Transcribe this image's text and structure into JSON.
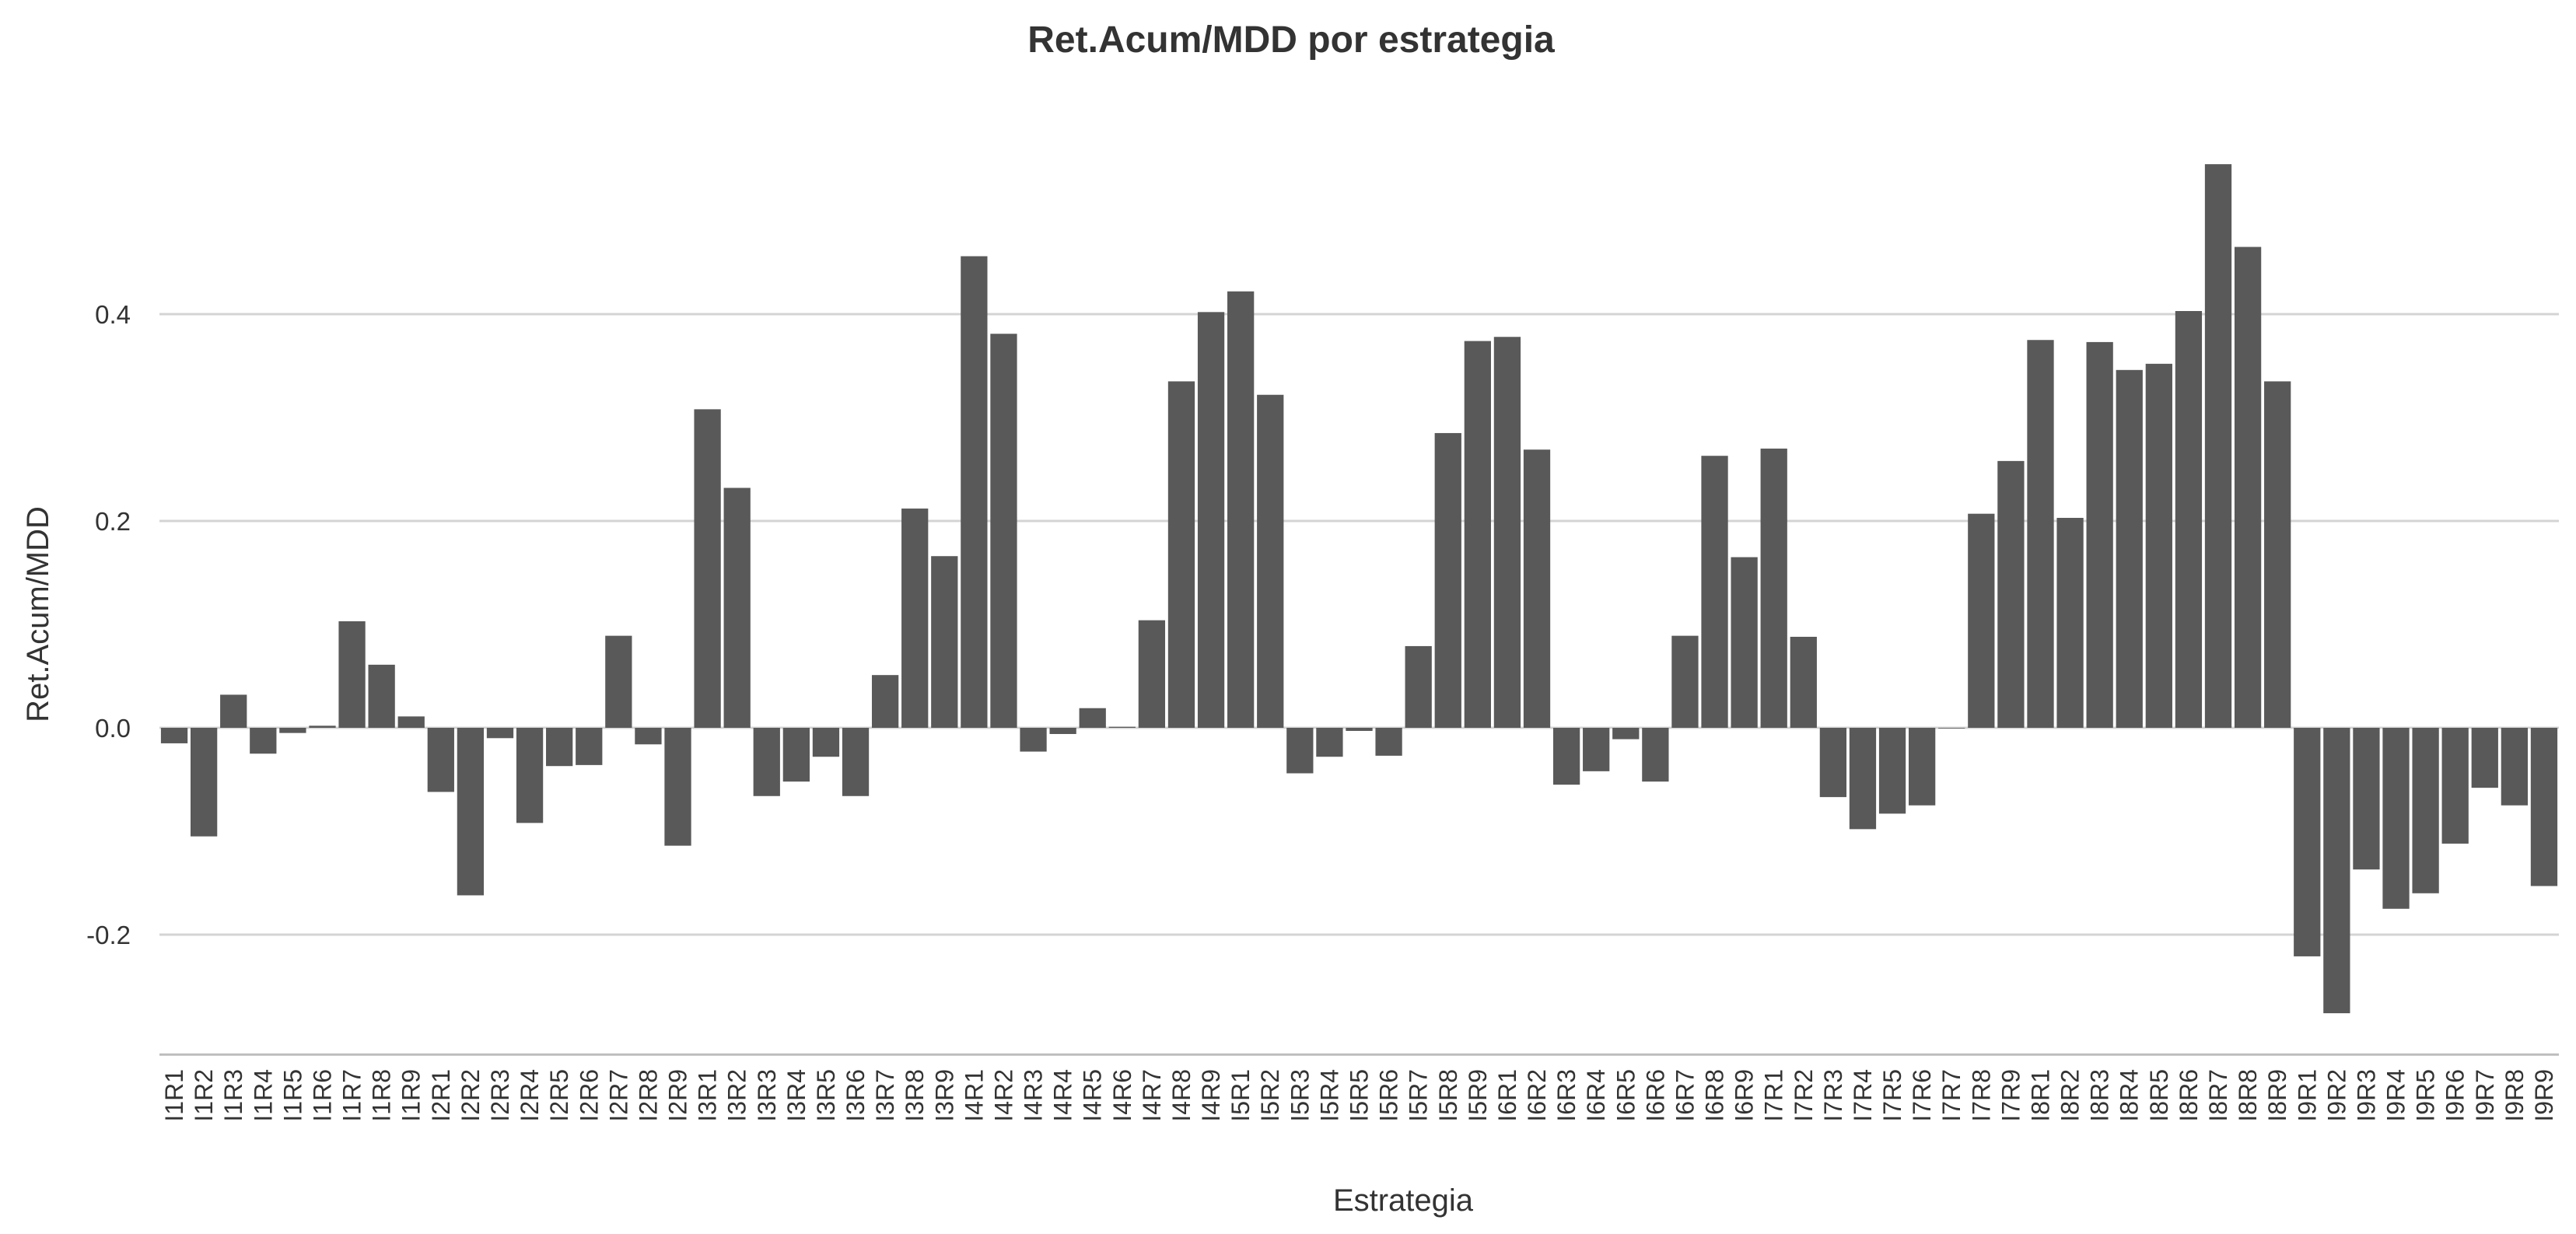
{
  "chart_data": {
    "type": "bar",
    "title": "Ret.Acum/MDD por estrategia",
    "xlabel": "Estrategia",
    "ylabel": "Ret.Acum/MDD",
    "ylim": [
      -0.31,
      0.57
    ],
    "yticks": [
      -0.2,
      0.0,
      0.2,
      0.4
    ],
    "ytick_labels": [
      "-0.2",
      "0.0",
      "0.2",
      "0.4"
    ],
    "grid": "horizontal-major",
    "legend": "none",
    "bar_color": "#595959",
    "categories": [
      "I1R1",
      "I1R2",
      "I1R3",
      "I1R4",
      "I1R5",
      "I1R6",
      "I1R7",
      "I1R8",
      "I1R9",
      "I2R1",
      "I2R2",
      "I2R3",
      "I2R4",
      "I2R5",
      "I2R6",
      "I2R7",
      "I2R8",
      "I2R9",
      "I3R1",
      "I3R2",
      "I3R3",
      "I3R4",
      "I3R5",
      "I3R6",
      "I3R7",
      "I3R8",
      "I3R9",
      "I4R1",
      "I4R2",
      "I4R3",
      "I4R4",
      "I4R5",
      "I4R6",
      "I4R7",
      "I4R8",
      "I4R9",
      "I5R1",
      "I5R2",
      "I5R3",
      "I5R4",
      "I5R5",
      "I5R6",
      "I5R7",
      "I5R8",
      "I5R9",
      "I6R1",
      "I6R2",
      "I6R3",
      "I6R4",
      "I6R5",
      "I6R6",
      "I6R7",
      "I6R8",
      "I6R9",
      "I7R1",
      "I7R2",
      "I7R3",
      "I7R4",
      "I7R5",
      "I7R6",
      "I7R7",
      "I7R8",
      "I7R9",
      "I8R1",
      "I8R2",
      "I8R3",
      "I8R4",
      "I8R5",
      "I8R6",
      "I8R7",
      "I8R8",
      "I8R9",
      "I9R1",
      "I9R2",
      "I9R3",
      "I9R4",
      "I9R5",
      "I9R6",
      "I9R7",
      "I9R8",
      "I9R9"
    ],
    "values": [
      -0.015,
      -0.105,
      0.032,
      -0.025,
      -0.005,
      0.002,
      0.103,
      0.061,
      0.011,
      -0.062,
      -0.162,
      -0.01,
      -0.092,
      -0.037,
      -0.036,
      0.089,
      -0.016,
      -0.114,
      0.308,
      0.232,
      -0.066,
      -0.052,
      -0.028,
      -0.066,
      0.051,
      0.212,
      0.166,
      0.456,
      0.381,
      -0.023,
      -0.006,
      0.019,
      0.001,
      0.104,
      0.335,
      0.402,
      0.422,
      0.322,
      -0.044,
      -0.028,
      -0.003,
      -0.027,
      0.079,
      0.285,
      0.374,
      0.378,
      0.269,
      -0.055,
      -0.042,
      -0.011,
      -0.052,
      0.089,
      0.263,
      0.165,
      0.27,
      0.088,
      -0.067,
      -0.098,
      -0.083,
      -0.075,
      0.0,
      0.207,
      0.258,
      0.375,
      0.203,
      0.373,
      0.346,
      0.352,
      0.403,
      0.545,
      0.465,
      0.335,
      -0.221,
      -0.276,
      -0.137,
      -0.175,
      -0.16,
      -0.112,
      -0.058,
      -0.075,
      -0.153
    ]
  }
}
